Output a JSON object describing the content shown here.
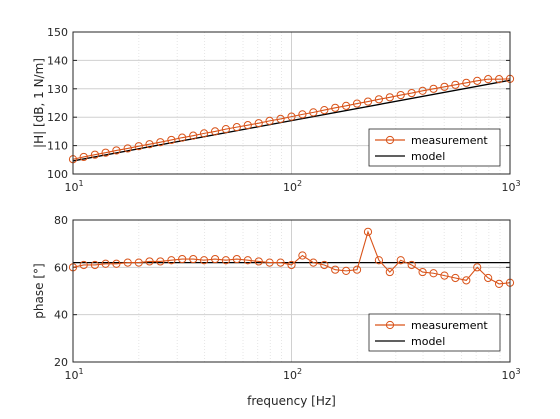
{
  "chart_data": [
    {
      "type": "line",
      "ylabel": "|H| [dB, 1 N/m]",
      "xlabel": "",
      "xscale": "log",
      "xlim": [
        10,
        1000
      ],
      "ylim": [
        100,
        150
      ],
      "x_tick_labels": [
        {
          "base": "10",
          "exp": "1"
        },
        {
          "base": "10",
          "exp": "2"
        },
        {
          "base": "10",
          "exp": "3"
        }
      ],
      "y_tick_labels": [
        "100",
        "110",
        "120",
        "130",
        "140",
        "150"
      ],
      "grid": true,
      "legend_position": "bottom-right",
      "series": [
        {
          "name": "measurement",
          "color": "#D95319",
          "marker": "circle",
          "x": [
            10.0,
            11.2,
            12.6,
            14.1,
            15.8,
            17.8,
            20.0,
            22.4,
            25.1,
            28.2,
            31.6,
            35.5,
            39.8,
            44.7,
            50.1,
            56.2,
            63.1,
            70.8,
            79.4,
            89.1,
            100.0,
            112.2,
            125.9,
            141.3,
            158.5,
            177.8,
            199.5,
            223.9,
            251.2,
            281.8,
            316.2,
            354.8,
            398.1,
            446.7,
            501.2,
            562.3,
            631.0,
            707.9,
            794.3,
            891.3,
            1000.0
          ],
          "y": [
            105.2,
            106.0,
            106.8,
            107.5,
            108.3,
            109.0,
            109.8,
            110.5,
            111.2,
            112.0,
            112.8,
            113.5,
            114.3,
            115.0,
            115.8,
            116.5,
            117.2,
            117.9,
            118.7,
            119.4,
            120.2,
            121.0,
            121.7,
            122.5,
            123.3,
            124.0,
            124.8,
            125.5,
            126.3,
            127.0,
            127.8,
            128.5,
            129.3,
            130.0,
            130.7,
            131.4,
            132.1,
            132.8,
            133.4,
            133.4,
            133.5
          ]
        },
        {
          "name": "model",
          "color": "#000000",
          "marker": "none",
          "x": [
            10,
            1000
          ],
          "y": [
            104.6,
            133.0
          ]
        }
      ]
    },
    {
      "type": "line",
      "ylabel": "phase [°]",
      "xlabel": "frequency [Hz]",
      "xscale": "log",
      "xlim": [
        10,
        1000
      ],
      "ylim": [
        20,
        80
      ],
      "x_tick_labels": [
        {
          "base": "10",
          "exp": "1"
        },
        {
          "base": "10",
          "exp": "2"
        },
        {
          "base": "10",
          "exp": "3"
        }
      ],
      "y_tick_labels": [
        "20",
        "40",
        "60",
        "80"
      ],
      "grid": true,
      "legend_position": "bottom-right",
      "series": [
        {
          "name": "measurement",
          "color": "#D95319",
          "marker": "circle",
          "x": [
            10.0,
            11.2,
            12.6,
            14.1,
            15.8,
            17.8,
            20.0,
            22.4,
            25.1,
            28.2,
            31.6,
            35.5,
            39.8,
            44.7,
            50.1,
            56.2,
            63.1,
            70.8,
            79.4,
            89.1,
            100.0,
            112.2,
            125.9,
            141.3,
            158.5,
            177.8,
            199.5,
            223.9,
            251.2,
            281.8,
            316.2,
            354.8,
            398.1,
            446.7,
            501.2,
            562.3,
            631.0,
            707.9,
            794.3,
            891.3,
            1000.0
          ],
          "y": [
            60.0,
            61.0,
            61.0,
            61.5,
            61.5,
            62.0,
            62.0,
            62.5,
            62.5,
            63.0,
            63.5,
            63.5,
            63.0,
            63.5,
            63.0,
            63.5,
            63.0,
            62.5,
            62.0,
            62.0,
            61.0,
            65.0,
            62.0,
            61.0,
            59.0,
            58.5,
            59.0,
            75.0,
            63.0,
            58.0,
            63.0,
            61.0,
            58.0,
            57.5,
            56.5,
            55.5,
            54.5,
            60.0,
            55.5,
            53.0,
            53.5
          ]
        },
        {
          "name": "model",
          "color": "#000000",
          "marker": "none",
          "x": [
            10,
            1000
          ],
          "y": [
            62.0,
            62.0
          ]
        }
      ]
    }
  ]
}
